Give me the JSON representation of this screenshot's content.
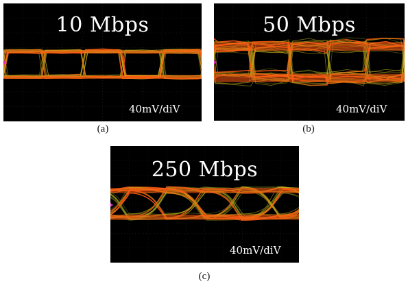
{
  "panels": [
    {
      "id": "a",
      "rate_label": "10 Mbps",
      "scale_label": "40mV/diV",
      "caption": "(a)",
      "eye_cycles": 5,
      "noise": "low"
    },
    {
      "id": "b",
      "rate_label": "50 Mbps",
      "scale_label": "40mV/diV",
      "caption": "(b)",
      "eye_cycles": 5,
      "noise": "high"
    },
    {
      "id": "c",
      "rate_label": "250 Mbps",
      "scale_label": "40mV/diV",
      "caption": "(c)",
      "eye_cycles": 5,
      "noise": "medium"
    }
  ],
  "colors": {
    "screen": "#000000",
    "trace_yellow": "#c9b21a",
    "trace_orange": "#ff5a12",
    "trace_green": "#7c8a1c",
    "marker": "#e020c8",
    "grid": "#2a2a2a"
  }
}
